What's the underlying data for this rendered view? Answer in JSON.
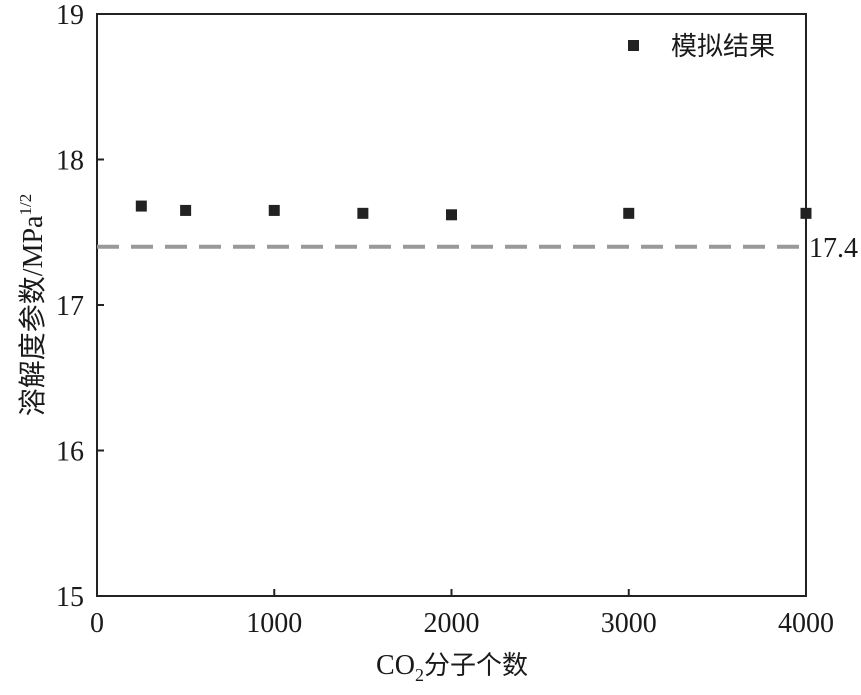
{
  "chart_data": {
    "type": "scatter",
    "series": [
      {
        "name": "模拟结果",
        "marker": "square",
        "color": "#222222",
        "x": [
          250,
          500,
          1000,
          1500,
          2000,
          3000,
          4000
        ],
        "y": [
          17.68,
          17.65,
          17.65,
          17.63,
          17.62,
          17.63,
          17.63
        ]
      }
    ],
    "reference_line": {
      "y": 17.4,
      "label": "17.4",
      "style": "dashed",
      "color": "#999999"
    },
    "xlabel": {
      "main": "CO",
      "sub": "2",
      "rest": "分子个数"
    },
    "ylabel": {
      "main": "溶解度参数/MPa",
      "sup": "1/2"
    },
    "xlim": [
      0,
      4000
    ],
    "ylim": [
      15,
      19
    ],
    "xticks": [
      0,
      1000,
      2000,
      3000,
      4000
    ],
    "yticks": [
      15,
      16,
      17,
      18,
      19
    ],
    "grid": false,
    "legend_position": "top-right"
  }
}
